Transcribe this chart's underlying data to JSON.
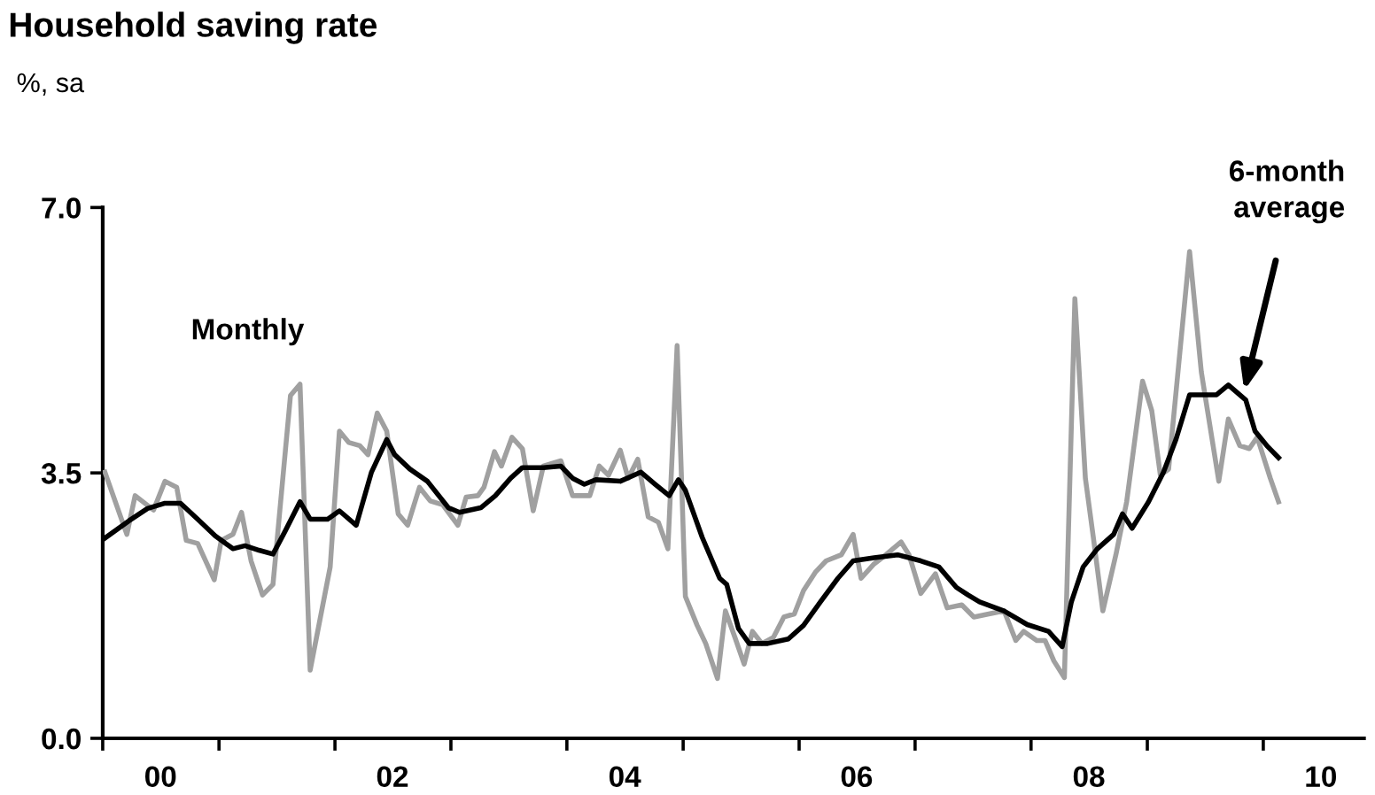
{
  "chart_data": {
    "type": "line",
    "title": "Household saving rate",
    "subtitle": "%, sa",
    "xlim": [
      "2000-01-01",
      "2010-11-14"
    ],
    "xticks": [
      {
        "value": "2000-01-01",
        "label": null
      },
      {
        "value": "2000-07-01",
        "label": "00"
      },
      {
        "value": "2001-01-01",
        "label": null
      },
      {
        "value": "2002-01-01",
        "label": null
      },
      {
        "value": "2002-07-01",
        "label": "02"
      },
      {
        "value": "2003-01-01",
        "label": null
      },
      {
        "value": "2004-01-01",
        "label": null
      },
      {
        "value": "2004-07-01",
        "label": "04"
      },
      {
        "value": "2005-01-01",
        "label": null
      },
      {
        "value": "2006-01-01",
        "label": null
      },
      {
        "value": "2006-07-01",
        "label": "06"
      },
      {
        "value": "2007-01-01",
        "label": null
      },
      {
        "value": "2008-01-01",
        "label": null
      },
      {
        "value": "2008-07-01",
        "label": "08"
      },
      {
        "value": "2009-01-01",
        "label": null
      },
      {
        "value": "2010-01-01",
        "label": null
      },
      {
        "value": "2010-07-01",
        "label": "10"
      }
    ],
    "ylim": [
      0,
      7
    ],
    "yticks": [
      {
        "value": 0,
        "label": "0.0"
      },
      {
        "value": 3.5,
        "label": "3.5"
      },
      {
        "value": 7,
        "label": "7.0"
      }
    ],
    "grid": false,
    "legend": false,
    "marker": "none",
    "line_style": "solid",
    "series": [
      {
        "name": "Monthly",
        "color": "#a0a0a0",
        "x": [
          "2000-01-08",
          "2000-03-17",
          "2000-04-12",
          "2000-06-09",
          "2000-07-15",
          "2000-08-21",
          "2000-09-20",
          "2000-10-26",
          "2000-12-17",
          "2001-01-08",
          "2001-02-14",
          "2001-03-13",
          "2001-04-12",
          "2001-05-18",
          "2001-06-20",
          "2001-08-14",
          "2001-09-13",
          "2001-10-15",
          "2001-12-17",
          "2002-01-15",
          "2002-02-14",
          "2002-03-20",
          "2002-04-15",
          "2002-05-14",
          "2002-06-13",
          "2002-07-19",
          "2002-08-18",
          "2002-09-24",
          "2002-10-28",
          "2002-12-06",
          "2003-01-23",
          "2003-02-18",
          "2003-03-27",
          "2003-04-15",
          "2003-05-18",
          "2003-06-09",
          "2003-07-12",
          "2003-08-14",
          "2003-09-17",
          "2003-10-19",
          "2003-12-13",
          "2004-01-19",
          "2004-03-13",
          "2004-04-12",
          "2004-05-11",
          "2004-06-17",
          "2004-07-12",
          "2004-08-11",
          "2004-09-13",
          "2004-10-15",
          "2004-11-14",
          "2004-12-13",
          "2005-01-08",
          "2005-02-14",
          "2005-03-13",
          "2005-04-19",
          "2005-05-14",
          "2005-06-13",
          "2005-07-12",
          "2005-08-07",
          "2005-09-06",
          "2005-10-12",
          "2005-11-14",
          "2005-12-17",
          "2006-01-15",
          "2006-02-21",
          "2006-03-27",
          "2006-05-14",
          "2006-06-20",
          "2006-07-15",
          "2006-08-25",
          "2006-10-01",
          "2006-11-18",
          "2006-12-13",
          "2007-01-19",
          "2007-03-06",
          "2007-04-12",
          "2007-05-28",
          "2007-07-05",
          "2007-08-21",
          "2007-10-08",
          "2007-11-14",
          "2007-12-09",
          "2008-01-19",
          "2008-02-14",
          "2008-03-13",
          "2008-04-15",
          "2008-05-18",
          "2008-06-20",
          "2008-07-15",
          "2008-08-14",
          "2008-09-24",
          "2008-10-28",
          "2008-12-17",
          "2009-01-15",
          "2009-02-11",
          "2009-03-09",
          "2009-05-14",
          "2009-06-20",
          "2009-08-14",
          "2009-09-13",
          "2009-10-19",
          "2009-11-18",
          "2009-12-13",
          "2010-01-23",
          "2010-02-18"
        ],
        "values": [
          3.51,
          2.69,
          3.2,
          3.01,
          3.39,
          3.31,
          2.61,
          2.57,
          2.09,
          2.61,
          2.69,
          2.98,
          2.34,
          1.89,
          2.03,
          4.52,
          4.67,
          0.9,
          2.26,
          4.05,
          3.9,
          3.86,
          3.74,
          4.29,
          4.05,
          2.96,
          2.81,
          3.31,
          3.13,
          3.08,
          2.81,
          3.18,
          3.2,
          3.31,
          3.78,
          3.59,
          3.97,
          3.82,
          3.0,
          3.59,
          3.66,
          3.2,
          3.2,
          3.59,
          3.47,
          3.8,
          3.43,
          3.68,
          2.92,
          2.85,
          2.5,
          5.18,
          1.87,
          1.49,
          1.25,
          0.79,
          1.68,
          1.33,
          0.98,
          1.41,
          1.25,
          1.33,
          1.6,
          1.64,
          1.95,
          2.19,
          2.34,
          2.42,
          2.69,
          2.11,
          2.3,
          2.42,
          2.59,
          2.42,
          1.91,
          2.17,
          1.72,
          1.76,
          1.6,
          1.64,
          1.68,
          1.29,
          1.41,
          1.29,
          1.29,
          1.02,
          0.8,
          5.8,
          3.43,
          2.65,
          1.68,
          2.42,
          3.12,
          4.71,
          4.32,
          3.47,
          3.55,
          6.42,
          4.83,
          3.39,
          4.21,
          3.86,
          3.82,
          3.97,
          3.43,
          3.12
        ]
      },
      {
        "name": "6-month average",
        "color": "#000000",
        "x": [
          "2000-01-08",
          "2000-03-24",
          "2000-05-21",
          "2000-07-15",
          "2000-09-02",
          "2000-10-26",
          "2000-12-20",
          "2001-02-14",
          "2001-03-24",
          "2001-05-07",
          "2001-06-20",
          "2001-07-28",
          "2001-09-13",
          "2001-10-15",
          "2001-12-09",
          "2002-01-15",
          "2002-03-09",
          "2002-04-26",
          "2002-06-13",
          "2002-07-08",
          "2002-08-25",
          "2002-10-19",
          "2002-12-24",
          "2003-01-28",
          "2003-04-05",
          "2003-05-21",
          "2003-07-08",
          "2003-08-14",
          "2003-10-19",
          "2003-12-13",
          "2004-01-19",
          "2004-02-25",
          "2004-04-01",
          "2004-06-17",
          "2004-08-21",
          "2004-10-05",
          "2004-11-18",
          "2004-12-17",
          "2005-01-08",
          "2005-03-02",
          "2005-04-26",
          "2005-05-18",
          "2005-06-24",
          "2005-07-28",
          "2005-09-24",
          "2005-11-28",
          "2006-01-15",
          "2006-03-09",
          "2006-05-03",
          "2006-06-20",
          "2006-08-25",
          "2006-11-07",
          "2007-01-19",
          "2007-03-17",
          "2007-05-11",
          "2007-06-17",
          "2007-07-23",
          "2007-10-08",
          "2007-12-20",
          "2008-02-25",
          "2008-04-08",
          "2008-05-07",
          "2008-06-13",
          "2008-07-28",
          "2008-09-17",
          "2008-10-15",
          "2008-11-14",
          "2009-01-05",
          "2009-02-21",
          "2009-04-01",
          "2009-05-14",
          "2009-08-07",
          "2009-09-13",
          "2009-11-07",
          "2009-12-06",
          "2010-01-12",
          "2010-02-18"
        ],
        "values": [
          2.64,
          2.87,
          3.03,
          3.1,
          3.1,
          2.89,
          2.67,
          2.5,
          2.54,
          2.48,
          2.43,
          2.73,
          3.12,
          2.89,
          2.89,
          3.0,
          2.81,
          3.51,
          3.94,
          3.74,
          3.55,
          3.39,
          3.04,
          2.98,
          3.04,
          3.2,
          3.43,
          3.57,
          3.57,
          3.59,
          3.43,
          3.35,
          3.41,
          3.39,
          3.51,
          3.35,
          3.2,
          3.41,
          3.27,
          2.65,
          2.11,
          2.03,
          1.45,
          1.25,
          1.25,
          1.31,
          1.49,
          1.8,
          2.11,
          2.34,
          2.38,
          2.42,
          2.34,
          2.26,
          1.99,
          1.89,
          1.8,
          1.68,
          1.5,
          1.41,
          1.21,
          1.8,
          2.26,
          2.5,
          2.69,
          2.96,
          2.77,
          3.12,
          3.51,
          3.94,
          4.53,
          4.53,
          4.66,
          4.46,
          4.05,
          3.86,
          3.7
        ]
      }
    ]
  }
}
